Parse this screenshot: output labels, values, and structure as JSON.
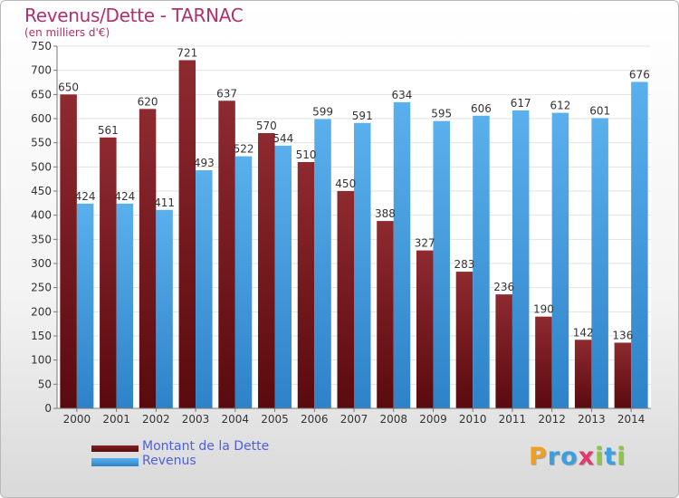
{
  "chart_data": {
    "type": "bar",
    "title": "Revenus/Dette - TARNAC",
    "subtitle": "(en milliers d'€)",
    "categories": [
      "2000",
      "2001",
      "2002",
      "2003",
      "2004",
      "2005",
      "2006",
      "2007",
      "2008",
      "2009",
      "2010",
      "2011",
      "2012",
      "2013",
      "2014"
    ],
    "series": [
      {
        "name": "Montant de la Dette",
        "color": "#7a1a1f",
        "values": [
          650,
          561,
          620,
          721,
          637,
          570,
          510,
          450,
          388,
          327,
          283,
          236,
          190,
          142,
          136
        ]
      },
      {
        "name": "Revenus",
        "color": "#4a9fe0",
        "values": [
          424,
          424,
          411,
          493,
          522,
          544,
          599,
          591,
          634,
          595,
          606,
          617,
          612,
          601,
          676
        ]
      }
    ],
    "ylim": [
      0,
      750
    ],
    "yticks": [
      0,
      50,
      100,
      150,
      200,
      250,
      300,
      350,
      400,
      450,
      500,
      550,
      600,
      650,
      700,
      750
    ],
    "grid": true,
    "legend_position": "bottom-left"
  },
  "legend": {
    "dette_label": "Montant de la Dette",
    "revenus_label": "Revenus"
  },
  "logo": {
    "text": "Proxiti",
    "letters": [
      "P",
      "r",
      "o",
      "x",
      "i",
      "t",
      "i"
    ],
    "colors": [
      "#f0a020",
      "#3aa0e0",
      "#3aa0e0",
      "#e03a6a",
      "#8cc63f",
      "#3aa0e0",
      "#8cc63f"
    ]
  }
}
